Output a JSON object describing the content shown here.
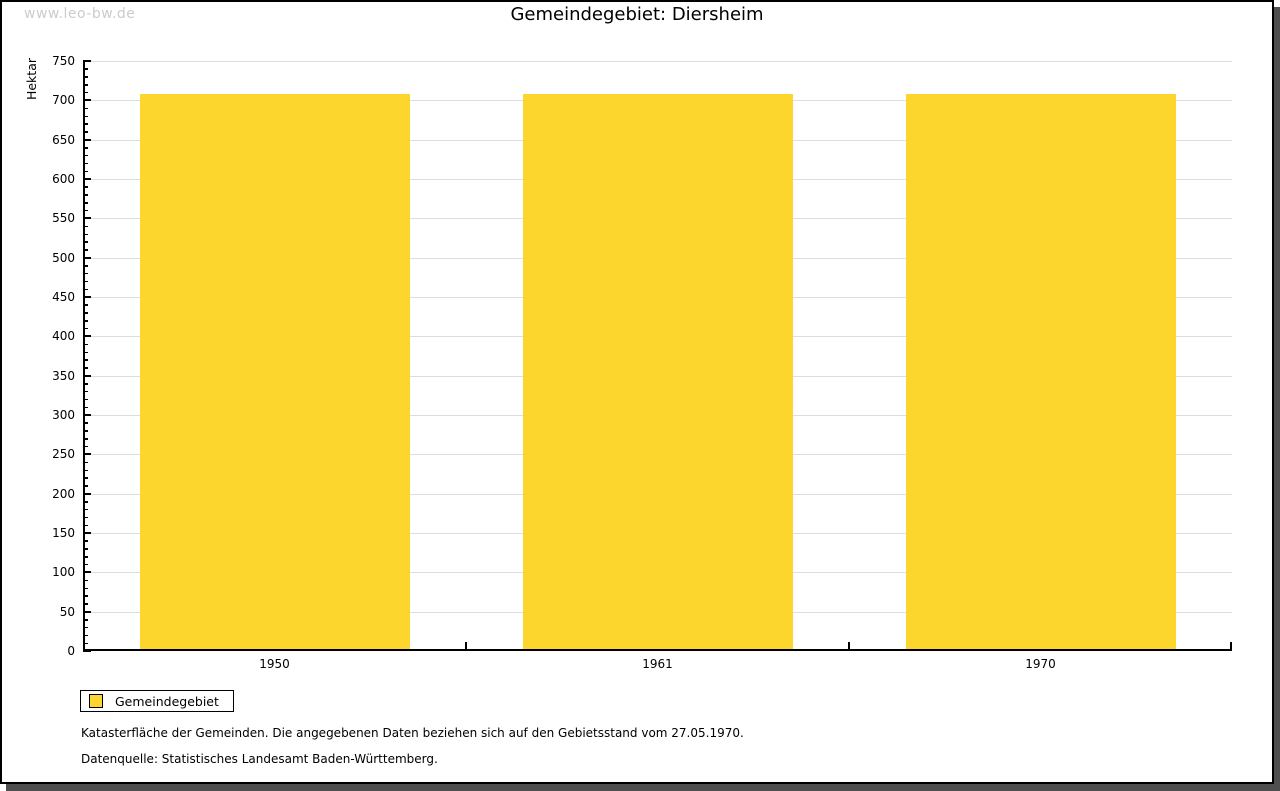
{
  "watermark": "www.leo-bw.de",
  "title": "Gemeindegebiet: Diersheim",
  "chart_data": {
    "type": "bar",
    "title": "Gemeindegebiet: Diersheim",
    "categories": [
      "1950",
      "1961",
      "1970"
    ],
    "values": [
      708,
      708,
      708
    ],
    "series_name": "Gemeindegebiet",
    "xlabel": "",
    "ylabel": "Hektar",
    "ylim": [
      0,
      750
    ],
    "ytick_step": 50,
    "yminor_tick_step": 10,
    "grid": "horizontal-major",
    "legend_position": "bottom-left",
    "bar_color": "#FDD62D"
  },
  "legend": {
    "items": [
      {
        "label": "Gemeindegebiet",
        "color": "#FDD62D"
      }
    ]
  },
  "footnotes": [
    "Katasterfläche der Gemeinden. Die angegebenen Daten beziehen sich auf den Gebietsstand vom 27.05.1970.",
    "Datenquelle: Statistisches Landesamt Baden-Württemberg."
  ],
  "colors": {
    "bar": "#FDD62D",
    "grid": "#DDDDDD",
    "axis": "#000000",
    "watermark": "#CCCCCC",
    "frame_shadow": "#4F4F4F"
  }
}
